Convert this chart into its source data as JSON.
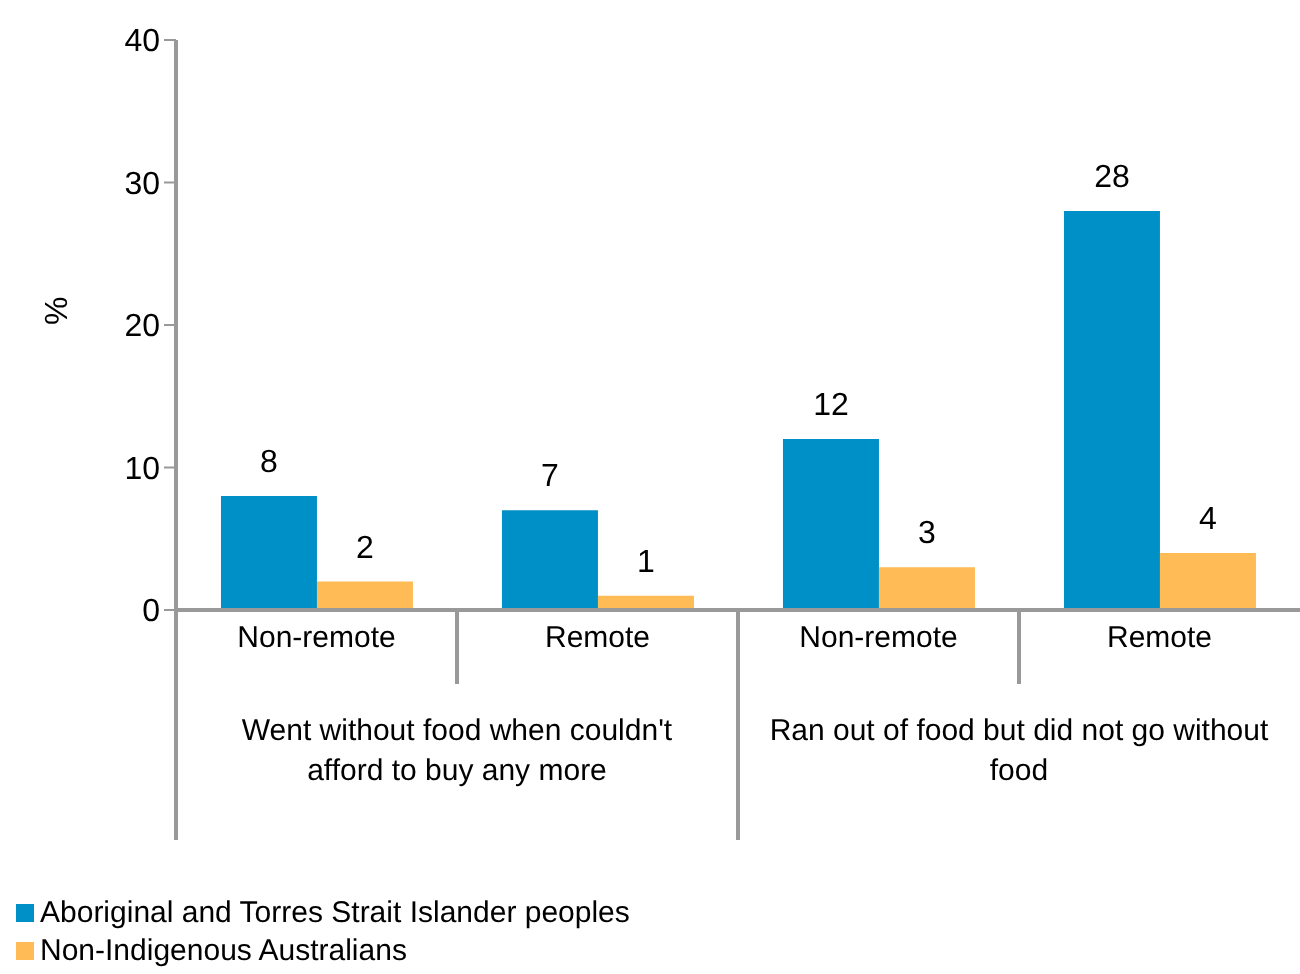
{
  "chart_data": {
    "type": "bar",
    "ylabel": "%",
    "categories": [
      "Non-remote",
      "Remote",
      "Non-remote",
      "Remote"
    ],
    "annotations": [
      "Went without food when couldn't afford to buy any more",
      "Ran out of food but did not go without food"
    ],
    "series": [
      {
        "name": "Aboriginal and Torres Strait Islander peoples",
        "color": "#0090c8",
        "values": [
          8,
          7,
          12,
          28
        ]
      },
      {
        "name": "Non-Indigenous Australians",
        "color": "#ffbb55",
        "values": [
          2,
          1,
          3,
          4
        ]
      }
    ],
    "ylim": [
      0,
      40
    ],
    "yticks": [
      0,
      10,
      20,
      30,
      40
    ],
    "data_labels": true,
    "legend": "bottom left",
    "grid": false
  }
}
